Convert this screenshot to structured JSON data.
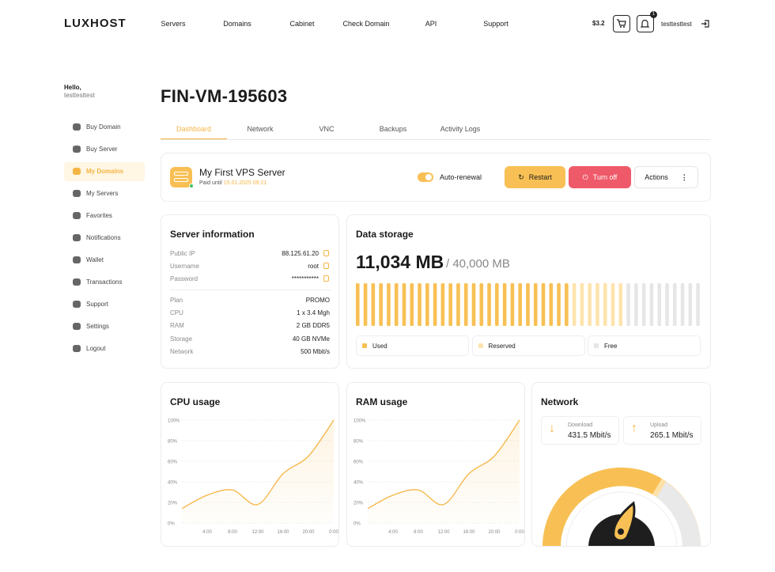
{
  "header": {
    "logo": "LUXHOST",
    "nav": [
      "Servers",
      "Domains",
      "Cabinet",
      "Check Domain",
      "API",
      "Support"
    ],
    "balance": "$3.2",
    "notification_count": "1",
    "username": "testtesttest"
  },
  "sidebar": {
    "greeting": "Hello,",
    "username": "testtesttest",
    "items": [
      "Buy Domain",
      "Buy Server",
      "My Domains",
      "My Servers",
      "Favorites",
      "Notifications",
      "Wallet",
      "Transactions",
      "Support",
      "Settings",
      "Logout"
    ],
    "active_index": 2
  },
  "page": {
    "title": "FIN-VM-195603",
    "tabs": [
      "Dashboard",
      "Network",
      "VNC",
      "Backups",
      "Activity Logs"
    ],
    "active_tab": 0
  },
  "server": {
    "name": "My First VPS Server",
    "paid_label": "Paid until",
    "paid_date": "15.01.2025 09:21",
    "auto_renewal": "Auto-renewal",
    "buttons": {
      "restart": "Restart",
      "turn_off": "Turn off",
      "actions": "Actions"
    }
  },
  "server_info": {
    "title": "Server information",
    "rows": [
      [
        "Public IP",
        "88.125.61.20"
      ],
      [
        "Username",
        "root"
      ],
      [
        "Password",
        "***********"
      ],
      [
        "Plan",
        "PROMO"
      ],
      [
        "CPU",
        "1 x 3.4 Mgh"
      ],
      [
        "RAM",
        "2 GB DDR5"
      ],
      [
        "Storage",
        "40 GB NVMe"
      ],
      [
        "Network",
        "500 Mbit/s"
      ]
    ]
  },
  "storage": {
    "title": "Data storage",
    "used": "11,034 MB",
    "total": "/ 40,000 MB",
    "legend": [
      "Used",
      "Reserved",
      "Free"
    ]
  },
  "cpu_chart": {
    "type": "line",
    "title": "CPU usage",
    "categories": [
      null,
      "4:00",
      "8:00",
      "12:00",
      "16:00",
      "20:00",
      "0:00"
    ],
    "values": [
      14,
      27,
      32,
      18,
      48,
      65,
      100
    ],
    "color": "#f5b544",
    "ylim": [
      0,
      100
    ],
    "yticks": [
      {
        "value": 0,
        "label": "0%"
      },
      {
        "value": 20,
        "label": "20%"
      },
      {
        "value": 40,
        "label": "40%"
      },
      {
        "value": 60,
        "label": "60%"
      },
      {
        "value": 80,
        "label": "80%"
      },
      {
        "value": 100,
        "label": "100%"
      }
    ],
    "grid": true
  },
  "ram_chart": {
    "type": "line",
    "title": "RAM usage",
    "categories": [
      null,
      "4:00",
      "8:00",
      "12:00",
      "16:00",
      "20:00",
      "0:00"
    ],
    "values": [
      14,
      27,
      32,
      18,
      48,
      65,
      100
    ],
    "color": "#f5b544",
    "ylim": [
      0,
      100
    ],
    "yticks": [
      {
        "value": 0,
        "label": "0%"
      },
      {
        "value": 20,
        "label": "20%"
      },
      {
        "value": 40,
        "label": "40%"
      },
      {
        "value": 60,
        "label": "60%"
      },
      {
        "value": 80,
        "label": "80%"
      },
      {
        "value": 100,
        "label": "100%"
      }
    ],
    "grid": true
  },
  "network": {
    "title": "Network",
    "download_label": "Download",
    "download": "431.5 Mbit/s",
    "upload_label": "Upload",
    "upload": "265.1 Mbit/s"
  }
}
